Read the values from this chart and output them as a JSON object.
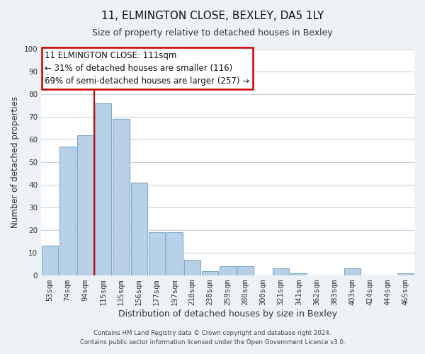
{
  "title": "11, ELMINGTON CLOSE, BEXLEY, DA5 1LY",
  "subtitle": "Size of property relative to detached houses in Bexley",
  "xlabel": "Distribution of detached houses by size in Bexley",
  "ylabel": "Number of detached properties",
  "bar_labels": [
    "53sqm",
    "74sqm",
    "94sqm",
    "115sqm",
    "135sqm",
    "156sqm",
    "177sqm",
    "197sqm",
    "218sqm",
    "238sqm",
    "259sqm",
    "280sqm",
    "300sqm",
    "321sqm",
    "341sqm",
    "362sqm",
    "383sqm",
    "403sqm",
    "424sqm",
    "444sqm",
    "465sqm"
  ],
  "bar_values": [
    13,
    57,
    62,
    76,
    69,
    41,
    19,
    19,
    7,
    2,
    4,
    4,
    0,
    3,
    1,
    0,
    0,
    3,
    0,
    0,
    1
  ],
  "bar_color": "#b8d0e8",
  "bar_edge_color": "#7aabcc",
  "vline_x": 2.5,
  "vline_color": "#cc0000",
  "ylim": [
    0,
    100
  ],
  "annotation_box_text": "11 ELMINGTON CLOSE: 111sqm\n← 31% of detached houses are smaller (116)\n69% of semi-detached houses are larger (257) →",
  "footer_line1": "Contains HM Land Registry data © Crown copyright and database right 2024.",
  "footer_line2": "Contains public sector information licensed under the Open Government Licence v3.0.",
  "background_color": "#eef2f7",
  "plot_background_color": "#ffffff",
  "grid_color": "#c8d4e0",
  "title_fontsize": 11,
  "subtitle_fontsize": 9,
  "tick_fontsize": 7.5,
  "ylabel_fontsize": 8.5,
  "xlabel_fontsize": 9
}
